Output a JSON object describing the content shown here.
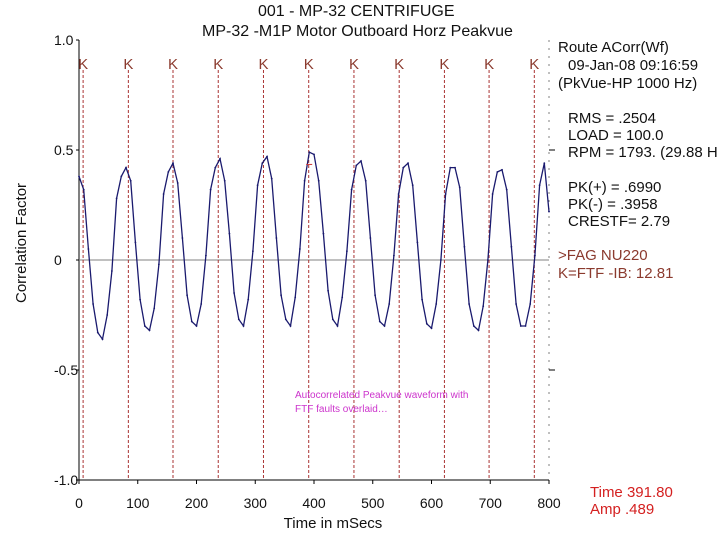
{
  "header": {
    "line1": "001  - MP-32 CENTRIFUGE",
    "line2": "MP-32     -M1P   Motor Outboard Horz Peakvue"
  },
  "info_panel": {
    "route": "Route ACorr(Wf)",
    "datetime": "09-Jan-08  09:16:59",
    "filter": "(PkVue-HP 1000 Hz)",
    "rms": "RMS =  .2504",
    "load": "LOAD = 100.0",
    "rpm": "RPM = 1793. (29.88 H",
    "pk_pos": "PK(+) = .6990",
    "pk_neg": "PK(-) = .3958",
    "crestf": "CRESTF= 2.79",
    "bearing": ">FAG NU220",
    "fault": "K=FTF  -IB: 12.81"
  },
  "cursor_readout": {
    "time": "Time  391.80",
    "amp": "Amp   .489"
  },
  "annotation": "Autocorrelated Peakvue waveform with FTF faults overlaid…",
  "chart_data": {
    "type": "line",
    "xlabel": "Time in mSecs",
    "ylabel": "Correlation Factor",
    "xlim": [
      0,
      800
    ],
    "ylim": [
      -1.0,
      1.0
    ],
    "x_ticks": [
      "0",
      "100",
      "200",
      "300",
      "400",
      "500",
      "600",
      "700",
      "800"
    ],
    "y_ticks": [
      "1.0",
      "0.5",
      "0",
      "-0.5",
      "-1.0"
    ],
    "fault_marker_label": "K",
    "fault_markers_x": [
      7,
      84,
      160,
      237,
      314,
      391,
      468,
      545,
      622,
      698,
      775
    ],
    "cursor_x": 391.8,
    "cursor_amp": 0.489,
    "series": [
      {
        "x": [
          0,
          8,
          16,
          24,
          32,
          40,
          48,
          56,
          64,
          72,
          80,
          88,
          96,
          104,
          112,
          120,
          128,
          136,
          144,
          152,
          160,
          168,
          176,
          184,
          192,
          200,
          208,
          216,
          224,
          232,
          240,
          248,
          256,
          264,
          272,
          280,
          288,
          296,
          304,
          312,
          320,
          328,
          336,
          344,
          352,
          360,
          368,
          376,
          384,
          392,
          400,
          408,
          416,
          424,
          432,
          440,
          448,
          456,
          464,
          472,
          480,
          488,
          496,
          504,
          512,
          520,
          528,
          536,
          544,
          552,
          560,
          568,
          576,
          584,
          592,
          600,
          608,
          616,
          624,
          632,
          640,
          648,
          656,
          664,
          672,
          680,
          688,
          696,
          704,
          712,
          720,
          728,
          736,
          744,
          752,
          760,
          768,
          776,
          784,
          792,
          800
        ],
        "y": [
          0.38,
          0.32,
          0.05,
          -0.2,
          -0.33,
          -0.36,
          -0.25,
          -0.05,
          0.28,
          0.38,
          0.42,
          0.36,
          0.08,
          -0.18,
          -0.3,
          -0.32,
          -0.22,
          -0.02,
          0.3,
          0.4,
          0.44,
          0.35,
          0.1,
          -0.16,
          -0.28,
          -0.3,
          -0.2,
          0.02,
          0.32,
          0.42,
          0.46,
          0.36,
          0.12,
          -0.15,
          -0.27,
          -0.3,
          -0.18,
          0.04,
          0.34,
          0.44,
          0.47,
          0.37,
          0.1,
          -0.16,
          -0.27,
          -0.3,
          -0.17,
          0.05,
          0.36,
          0.49,
          0.48,
          0.36,
          0.12,
          -0.14,
          -0.27,
          -0.3,
          -0.17,
          0.04,
          0.32,
          0.43,
          0.45,
          0.36,
          0.1,
          -0.16,
          -0.28,
          -0.3,
          -0.2,
          0.02,
          0.3,
          0.42,
          0.44,
          0.34,
          0.08,
          -0.18,
          -0.29,
          -0.31,
          -0.2,
          0.0,
          0.3,
          0.42,
          0.42,
          0.33,
          0.06,
          -0.2,
          -0.3,
          -0.32,
          -0.21,
          0.0,
          0.3,
          0.4,
          0.41,
          0.32,
          0.06,
          -0.2,
          -0.3,
          -0.3,
          -0.2,
          0.02,
          0.34,
          0.44,
          0.22
        ]
      }
    ]
  }
}
